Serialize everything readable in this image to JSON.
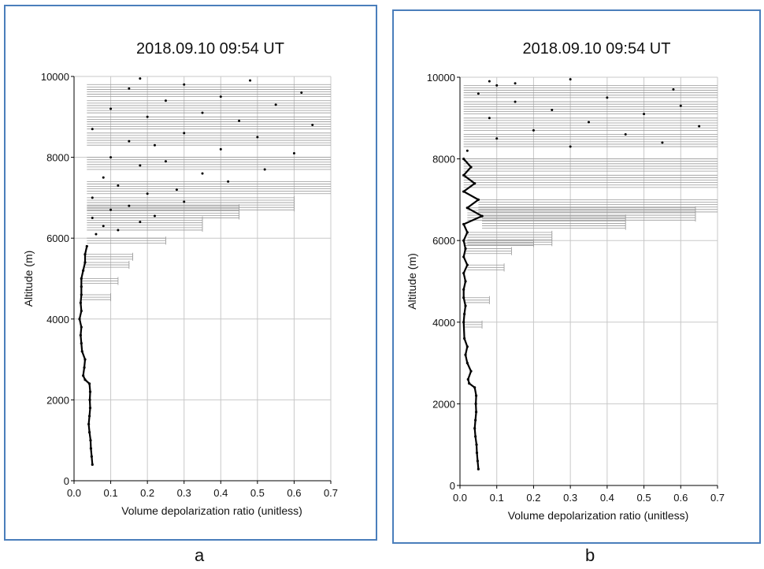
{
  "chart_data": [
    {
      "type": "scatter",
      "panel": "a",
      "title": "2018.09.10 09:54 UT",
      "xlabel": "Volume depolarization ratio  (unitless)",
      "ylabel": "Altitude (m)",
      "xlim": [
        0.0,
        0.7
      ],
      "ylim": [
        0,
        10000
      ],
      "xticks": [
        "0.0",
        "0.1",
        "0.2",
        "0.3",
        "0.4",
        "0.5",
        "0.6",
        "0.7"
      ],
      "yticks": [
        "0",
        "2000",
        "4000",
        "6000",
        "8000",
        "10000"
      ],
      "grid": true,
      "profile": [
        [
          0.05,
          400
        ],
        [
          0.048,
          600
        ],
        [
          0.046,
          800
        ],
        [
          0.045,
          1000
        ],
        [
          0.042,
          1200
        ],
        [
          0.04,
          1400
        ],
        [
          0.042,
          1600
        ],
        [
          0.044,
          1800
        ],
        [
          0.043,
          2000
        ],
        [
          0.044,
          2200
        ],
        [
          0.042,
          2400
        ],
        [
          0.03,
          2500
        ],
        [
          0.025,
          2600
        ],
        [
          0.028,
          2800
        ],
        [
          0.03,
          3000
        ],
        [
          0.022,
          3200
        ],
        [
          0.02,
          3400
        ],
        [
          0.018,
          3600
        ],
        [
          0.02,
          3800
        ],
        [
          0.015,
          4000
        ],
        [
          0.02,
          4200
        ],
        [
          0.018,
          4400
        ],
        [
          0.02,
          4600
        ],
        [
          0.02,
          4800
        ],
        [
          0.02,
          5000
        ],
        [
          0.025,
          5200
        ],
        [
          0.03,
          5400
        ],
        [
          0.03,
          5600
        ],
        [
          0.035,
          5800
        ]
      ],
      "scatter": [
        [
          0.06,
          6100
        ],
        [
          0.12,
          6200
        ],
        [
          0.08,
          6300
        ],
        [
          0.18,
          6400
        ],
        [
          0.05,
          6500
        ],
        [
          0.22,
          6550
        ],
        [
          0.1,
          6700
        ],
        [
          0.15,
          6800
        ],
        [
          0.3,
          6900
        ],
        [
          0.05,
          7000
        ],
        [
          0.2,
          7100
        ],
        [
          0.28,
          7200
        ],
        [
          0.12,
          7300
        ],
        [
          0.42,
          7400
        ],
        [
          0.08,
          7500
        ],
        [
          0.35,
          7600
        ],
        [
          0.52,
          7700
        ],
        [
          0.18,
          7800
        ],
        [
          0.25,
          7900
        ],
        [
          0.1,
          8000
        ],
        [
          0.6,
          8100
        ],
        [
          0.4,
          8200
        ],
        [
          0.22,
          8300
        ],
        [
          0.15,
          8400
        ],
        [
          0.5,
          8500
        ],
        [
          0.3,
          8600
        ],
        [
          0.05,
          8700
        ],
        [
          0.65,
          8800
        ],
        [
          0.45,
          8900
        ],
        [
          0.2,
          9000
        ],
        [
          0.35,
          9100
        ],
        [
          0.1,
          9200
        ],
        [
          0.55,
          9300
        ],
        [
          0.25,
          9400
        ],
        [
          0.4,
          9500
        ],
        [
          0.62,
          9600
        ],
        [
          0.15,
          9700
        ],
        [
          0.3,
          9800
        ],
        [
          0.48,
          9900
        ],
        [
          0.18,
          9950
        ]
      ],
      "errorbar_max": [
        [
          0.1,
          4600
        ],
        [
          0.12,
          5000
        ],
        [
          0.15,
          5400
        ],
        [
          0.16,
          5600
        ],
        [
          0.25,
          6000
        ],
        [
          0.35,
          6500
        ],
        [
          0.45,
          6800
        ],
        [
          0.6,
          7000
        ],
        [
          0.7,
          7400
        ],
        [
          0.7,
          8000
        ],
        [
          0.7,
          8600
        ],
        [
          0.7,
          9000
        ],
        [
          0.7,
          9400
        ],
        [
          0.7,
          9800
        ]
      ]
    },
    {
      "type": "scatter",
      "panel": "b",
      "title": "2018.09.10 09:54 UT",
      "xlabel": "Volume depolarization ratio  (unitless)",
      "ylabel": "Altitude (m)",
      "xlim": [
        0.0,
        0.7
      ],
      "ylim": [
        0,
        10000
      ],
      "xticks": [
        "0.0",
        "0.1",
        "0.2",
        "0.3",
        "0.4",
        "0.5",
        "0.6",
        "0.7"
      ],
      "yticks": [
        "0",
        "2000",
        "4000",
        "6000",
        "8000",
        "10000"
      ],
      "grid": true,
      "profile": [
        [
          0.05,
          400
        ],
        [
          0.048,
          600
        ],
        [
          0.046,
          800
        ],
        [
          0.045,
          1000
        ],
        [
          0.042,
          1200
        ],
        [
          0.04,
          1400
        ],
        [
          0.042,
          1600
        ],
        [
          0.044,
          1800
        ],
        [
          0.043,
          2000
        ],
        [
          0.044,
          2200
        ],
        [
          0.04,
          2400
        ],
        [
          0.025,
          2500
        ],
        [
          0.022,
          2600
        ],
        [
          0.03,
          2800
        ],
        [
          0.02,
          3000
        ],
        [
          0.015,
          3200
        ],
        [
          0.02,
          3400
        ],
        [
          0.012,
          3600
        ],
        [
          0.01,
          4000
        ],
        [
          0.012,
          4200
        ],
        [
          0.015,
          4400
        ],
        [
          0.01,
          4600
        ],
        [
          0.01,
          4800
        ],
        [
          0.015,
          5000
        ],
        [
          0.01,
          5200
        ],
        [
          0.02,
          5400
        ],
        [
          0.01,
          5600
        ],
        [
          0.015,
          5800
        ],
        [
          0.01,
          6000
        ],
        [
          0.02,
          6200
        ],
        [
          0.01,
          6400
        ],
        [
          0.06,
          6600
        ],
        [
          0.02,
          6800
        ],
        [
          0.05,
          7000
        ],
        [
          0.01,
          7200
        ],
        [
          0.04,
          7400
        ],
        [
          0.01,
          7600
        ],
        [
          0.03,
          7800
        ],
        [
          0.01,
          8000
        ]
      ],
      "scatter": [
        [
          0.02,
          8200
        ],
        [
          0.3,
          8300
        ],
        [
          0.55,
          8400
        ],
        [
          0.1,
          8500
        ],
        [
          0.45,
          8600
        ],
        [
          0.2,
          8700
        ],
        [
          0.65,
          8800
        ],
        [
          0.35,
          8900
        ],
        [
          0.08,
          9000
        ],
        [
          0.5,
          9100
        ],
        [
          0.25,
          9200
        ],
        [
          0.6,
          9300
        ],
        [
          0.15,
          9400
        ],
        [
          0.4,
          9500
        ],
        [
          0.05,
          9600
        ],
        [
          0.58,
          9700
        ],
        [
          0.1,
          9800
        ],
        [
          0.15,
          9850
        ],
        [
          0.08,
          9900
        ],
        [
          0.3,
          9950
        ]
      ],
      "errorbar_max": [
        [
          0.06,
          4000
        ],
        [
          0.08,
          4600
        ],
        [
          0.12,
          5400
        ],
        [
          0.14,
          5800
        ],
        [
          0.2,
          6000
        ],
        [
          0.25,
          6200
        ],
        [
          0.45,
          6600
        ],
        [
          0.64,
          6800
        ],
        [
          0.7,
          7000
        ],
        [
          0.7,
          7600
        ],
        [
          0.7,
          8000
        ],
        [
          0.7,
          8600
        ],
        [
          0.7,
          9000
        ],
        [
          0.7,
          9400
        ],
        [
          0.7,
          9800
        ]
      ]
    }
  ],
  "captions": {
    "a": "a",
    "b": "b"
  }
}
